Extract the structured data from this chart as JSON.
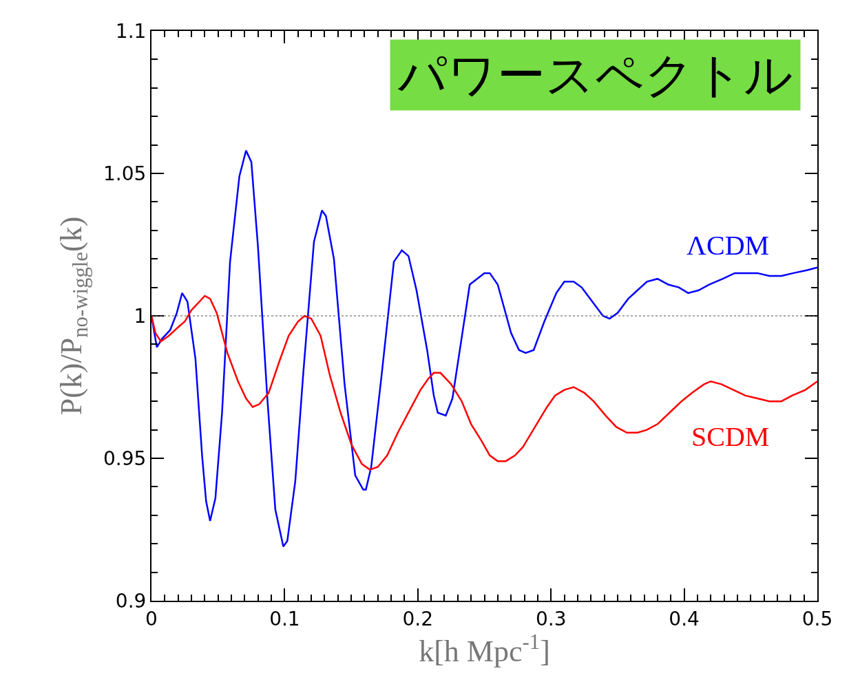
{
  "chart_data": {
    "type": "line",
    "title": "パワースペクトル",
    "xlabel": "k[h Mpc$^{-1}$]",
    "ylabel": "P(k)/P$_{no-wiggle}$(k)",
    "xlim": [
      0,
      0.5
    ],
    "xticks": [
      0,
      0.1,
      0.2,
      0.3,
      0.4,
      0.5
    ],
    "ylim": [
      0.9,
      1.1
    ],
    "yticks": [
      0.9,
      0.95,
      1,
      1.05,
      1.1
    ],
    "legend": false,
    "line_style": "solid",
    "marker": "none",
    "ref_lines": [
      {
        "axis": "y",
        "value": 1,
        "color": "#555555",
        "line_style": "dotted"
      }
    ],
    "series": [
      {
        "name": "ΛCDM",
        "color": "#0000ff",
        "x": [
          0,
          0.004,
          0.008,
          0.014,
          0.019,
          0.023,
          0.027,
          0.033,
          0.038,
          0.041,
          0.044,
          0.048,
          0.053,
          0.059,
          0.066,
          0.071,
          0.075,
          0.08,
          0.087,
          0.093,
          0.099,
          0.102,
          0.108,
          0.114,
          0.122,
          0.128,
          0.131,
          0.137,
          0.145,
          0.153,
          0.159,
          0.161,
          0.165,
          0.173,
          0.182,
          0.188,
          0.193,
          0.199,
          0.207,
          0.212,
          0.215,
          0.221,
          0.226,
          0.239,
          0.25,
          0.254,
          0.26,
          0.27,
          0.276,
          0.281,
          0.287,
          0.295,
          0.304,
          0.31,
          0.317,
          0.323,
          0.331,
          0.339,
          0.344,
          0.35,
          0.358,
          0.365,
          0.372,
          0.38,
          0.388,
          0.396,
          0.403,
          0.411,
          0.419,
          0.429,
          0.438,
          0.446,
          0.455,
          0.464,
          0.473,
          0.482,
          0.492,
          0.5
        ],
        "values": [
          1.0,
          0.989,
          0.992,
          0.995,
          1.001,
          1.008,
          1.005,
          0.985,
          0.951,
          0.935,
          0.928,
          0.936,
          0.966,
          1.019,
          1.049,
          1.058,
          1.054,
          1.024,
          0.971,
          0.932,
          0.919,
          0.921,
          0.942,
          0.98,
          1.026,
          1.037,
          1.035,
          1.02,
          0.976,
          0.944,
          0.939,
          0.939,
          0.947,
          0.98,
          1.019,
          1.023,
          1.021,
          1.009,
          0.988,
          0.972,
          0.966,
          0.965,
          0.971,
          1.011,
          1.015,
          1.015,
          1.011,
          0.994,
          0.988,
          0.987,
          0.988,
          0.998,
          1.008,
          1.012,
          1.012,
          1.01,
          1.005,
          1.0,
          0.999,
          1.001,
          1.006,
          1.009,
          1.012,
          1.013,
          1.011,
          1.01,
          1.008,
          1.009,
          1.011,
          1.013,
          1.015,
          1.015,
          1.015,
          1.014,
          1.014,
          1.015,
          1.016,
          1.017
        ]
      },
      {
        "name": "SCDM",
        "color": "#ff0000",
        "x": [
          0,
          0.003,
          0.007,
          0.013,
          0.02,
          0.025,
          0.03,
          0.036,
          0.04,
          0.044,
          0.049,
          0.057,
          0.065,
          0.071,
          0.076,
          0.081,
          0.088,
          0.096,
          0.103,
          0.11,
          0.115,
          0.12,
          0.127,
          0.134,
          0.142,
          0.15,
          0.158,
          0.164,
          0.17,
          0.177,
          0.185,
          0.194,
          0.202,
          0.208,
          0.212,
          0.217,
          0.225,
          0.233,
          0.24,
          0.248,
          0.254,
          0.26,
          0.266,
          0.273,
          0.279,
          0.288,
          0.297,
          0.303,
          0.31,
          0.317,
          0.325,
          0.332,
          0.341,
          0.349,
          0.357,
          0.365,
          0.372,
          0.38,
          0.389,
          0.398,
          0.406,
          0.415,
          0.42,
          0.428,
          0.437,
          0.446,
          0.455,
          0.464,
          0.473,
          0.481,
          0.491,
          0.5
        ],
        "values": [
          1.0,
          0.994,
          0.991,
          0.993,
          0.996,
          0.998,
          1.002,
          1.005,
          1.007,
          1.006,
          1.001,
          0.987,
          0.977,
          0.971,
          0.968,
          0.969,
          0.973,
          0.984,
          0.993,
          0.998,
          1.0,
          0.999,
          0.993,
          0.979,
          0.966,
          0.955,
          0.948,
          0.946,
          0.947,
          0.951,
          0.959,
          0.967,
          0.974,
          0.978,
          0.98,
          0.98,
          0.976,
          0.97,
          0.962,
          0.956,
          0.951,
          0.949,
          0.949,
          0.951,
          0.954,
          0.961,
          0.968,
          0.972,
          0.974,
          0.975,
          0.973,
          0.97,
          0.965,
          0.961,
          0.959,
          0.959,
          0.96,
          0.962,
          0.966,
          0.97,
          0.973,
          0.976,
          0.977,
          0.976,
          0.974,
          0.972,
          0.971,
          0.97,
          0.97,
          0.972,
          0.974,
          0.977
        ]
      }
    ]
  }
}
